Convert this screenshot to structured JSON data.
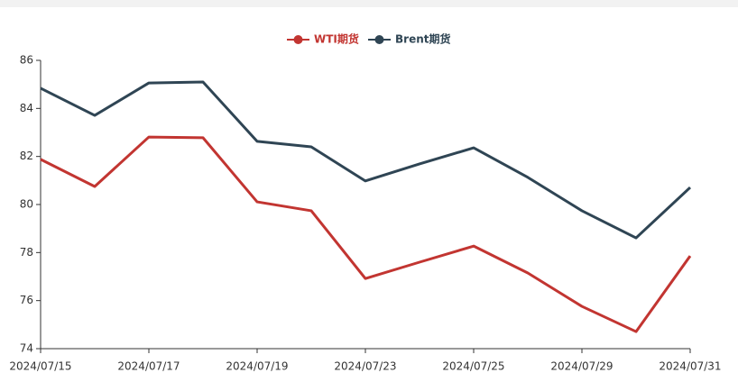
{
  "chart_data": {
    "type": "line",
    "categories": [
      "2024/07/15",
      null,
      "2024/07/17",
      null,
      "2024/07/19",
      null,
      "2024/07/23",
      null,
      "2024/07/25",
      null,
      "2024/07/29",
      null,
      "2024/07/31"
    ],
    "series": [
      {
        "name": "WTI期货",
        "color": "#c23531",
        "values": [
          81.88,
          80.75,
          82.81,
          82.78,
          80.11,
          79.74,
          76.92,
          77.6,
          78.27,
          77.15,
          75.76,
          74.71,
          77.86
        ]
      },
      {
        "name": "Brent期货",
        "color": "#2f4554",
        "values": [
          84.84,
          83.71,
          85.06,
          85.1,
          82.63,
          82.4,
          80.98,
          81.69,
          82.36,
          81.13,
          79.74,
          78.61,
          80.71
        ]
      }
    ],
    "ylim": [
      74,
      86
    ],
    "yticks": [
      74,
      76,
      78,
      80,
      82,
      84,
      86
    ]
  }
}
